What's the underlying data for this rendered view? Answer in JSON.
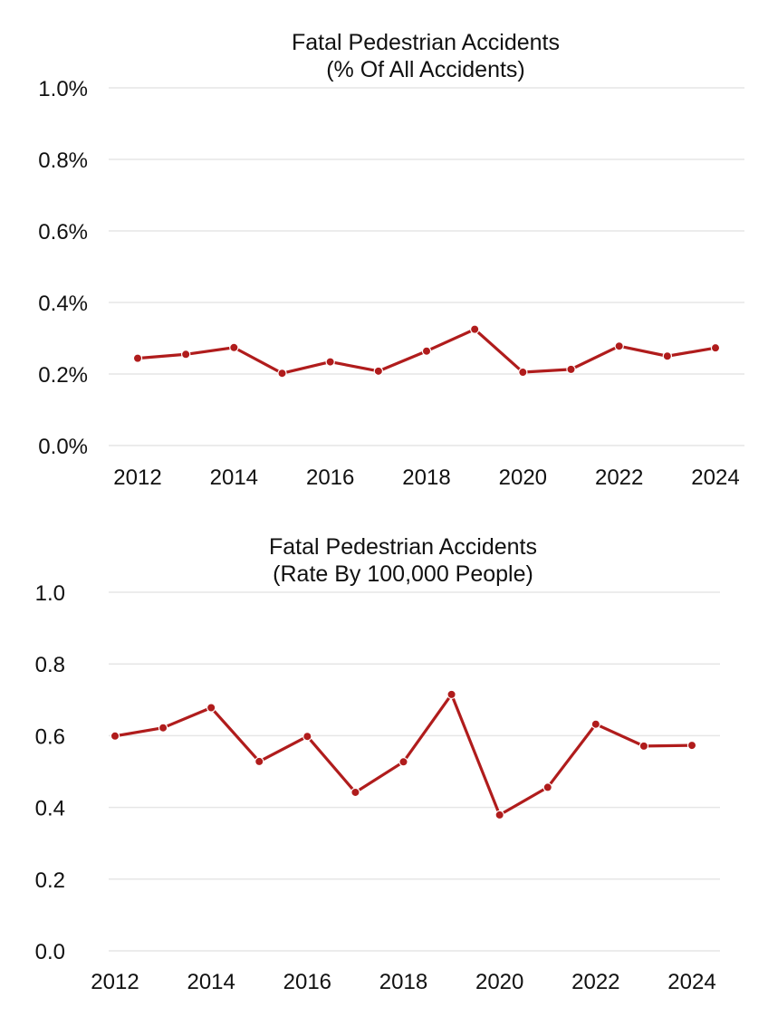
{
  "chart_data": [
    {
      "type": "line",
      "title": "Fatal Pedestrian Accidents",
      "subtitle": "(% Of All Accidents)",
      "xlabel": "",
      "ylabel": "",
      "x": [
        2012,
        2013,
        2014,
        2015,
        2016,
        2017,
        2018,
        2019,
        2020,
        2021,
        2022,
        2023,
        2024
      ],
      "series": [
        {
          "values": [
            0.244,
            0.255,
            0.274,
            0.202,
            0.234,
            0.208,
            0.264,
            0.325,
            0.205,
            0.213,
            0.278,
            0.25,
            0.273
          ]
        }
      ],
      "x_ticks": [
        "2012",
        "2014",
        "2016",
        "2018",
        "2020",
        "2022",
        "2024"
      ],
      "y_ticks": [
        "0.0%",
        "0.2%",
        "0.4%",
        "0.6%",
        "0.8%",
        "1.0%"
      ],
      "ylim": [
        0,
        1.0
      ],
      "grid": true,
      "legend": "none",
      "color": "#b01c1c"
    },
    {
      "type": "line",
      "title": "Fatal Pedestrian Accidents",
      "subtitle": "(Rate By 100,000 People)",
      "xlabel": "",
      "ylabel": "",
      "x": [
        2012,
        2013,
        2014,
        2015,
        2016,
        2017,
        2018,
        2019,
        2020,
        2021,
        2022,
        2023,
        2024
      ],
      "series": [
        {
          "values": [
            0.599,
            0.622,
            0.678,
            0.528,
            0.598,
            0.442,
            0.527,
            0.715,
            0.379,
            0.456,
            0.632,
            0.571,
            0.573
          ]
        }
      ],
      "x_ticks": [
        "2012",
        "2014",
        "2016",
        "2018",
        "2020",
        "2022",
        "2024"
      ],
      "y_ticks": [
        "0.0",
        "0.2",
        "0.4",
        "0.6",
        "0.8",
        "1.0"
      ],
      "ylim": [
        0,
        1.0
      ],
      "grid": true,
      "legend": "none",
      "color": "#b01c1c"
    }
  ]
}
